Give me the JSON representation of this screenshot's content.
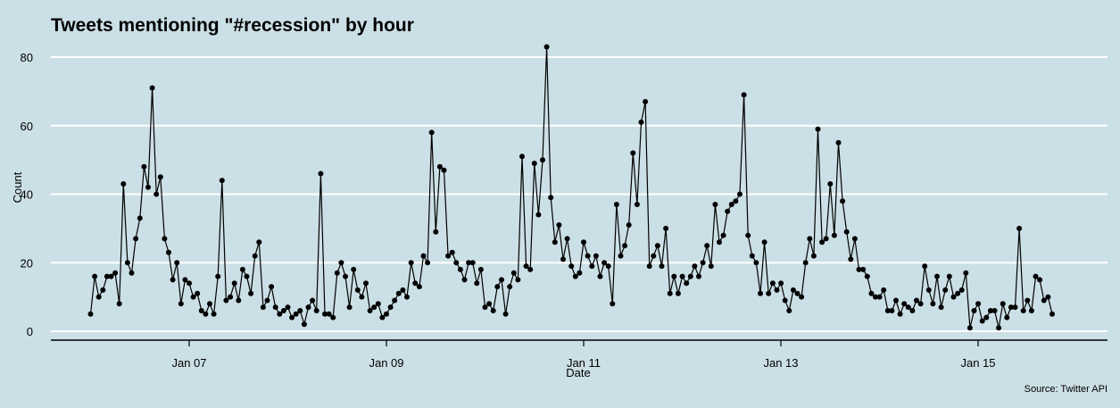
{
  "chart_data": {
    "type": "line",
    "title": "Tweets mentioning \"#recession\" by hour",
    "xlabel": "Date",
    "ylabel": "Count",
    "caption": "Source: Twitter API",
    "ylim": [
      0,
      85
    ],
    "yticks": [
      0,
      20,
      40,
      60,
      80
    ],
    "xticks": [
      {
        "label": "Jan 07",
        "x": 7
      },
      {
        "label": "Jan 09",
        "x": 9
      },
      {
        "label": "Jan 11",
        "x": 11
      },
      {
        "label": "Jan 13",
        "x": 13
      },
      {
        "label": "Jan 15",
        "x": 15
      }
    ],
    "grid": "horizontal",
    "legend": "none",
    "series_color": "#000000",
    "x_note": "x values are days in January (fractional = hour of day)",
    "x_start": 6.0,
    "x_step": 0.04167,
    "values": [
      5,
      16,
      10,
      12,
      16,
      16,
      17,
      8,
      43,
      20,
      17,
      27,
      33,
      48,
      42,
      71,
      40,
      45,
      27,
      23,
      15,
      20,
      8,
      15,
      14,
      10,
      11,
      6,
      5,
      8,
      5,
      16,
      44,
      9,
      10,
      14,
      9,
      18,
      16,
      11,
      22,
      26,
      7,
      9,
      13,
      7,
      5,
      6,
      7,
      4,
      5,
      6,
      2,
      7,
      9,
      6,
      46,
      5,
      5,
      4,
      17,
      20,
      16,
      7,
      18,
      12,
      10,
      14,
      6,
      7,
      8,
      4,
      5,
      7,
      9,
      11,
      12,
      10,
      20,
      14,
      13,
      22,
      20,
      58,
      29,
      48,
      47,
      22,
      23,
      20,
      18,
      15,
      20,
      20,
      14,
      18,
      7,
      8,
      6,
      13,
      15,
      5,
      13,
      17,
      15,
      51,
      19,
      18,
      49,
      34,
      50,
      83,
      39,
      26,
      31,
      21,
      27,
      19,
      16,
      17,
      26,
      22,
      19,
      22,
      16,
      20,
      19,
      8,
      37,
      22,
      25,
      31,
      52,
      37,
      61,
      67,
      19,
      22,
      25,
      19,
      30,
      11,
      16,
      11,
      16,
      14,
      16,
      19,
      16,
      20,
      25,
      19,
      37,
      26,
      28,
      35,
      37,
      38,
      40,
      69,
      28,
      22,
      20,
      11,
      26,
      11,
      14,
      12,
      14,
      9,
      6,
      12,
      11,
      10,
      20,
      27,
      22,
      59,
      26,
      27,
      43,
      28,
      55,
      38,
      29,
      21,
      27,
      18,
      18,
      16,
      11,
      10,
      10,
      12,
      6,
      6,
      9,
      5,
      8,
      7,
      6,
      9,
      8,
      19,
      12,
      8,
      16,
      7,
      12,
      16,
      10,
      11,
      12,
      17,
      1,
      6,
      8,
      3,
      4,
      6,
      6,
      1,
      8,
      4,
      7,
      7,
      30,
      6,
      9,
      6,
      16,
      15,
      9,
      10,
      5
    ]
  }
}
